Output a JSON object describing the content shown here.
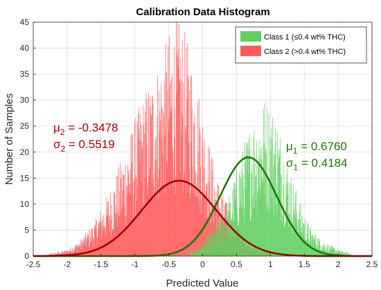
{
  "chart_data": {
    "type": "histogram",
    "title": "Calibration Data Histogram",
    "xlabel": "Predicted Value",
    "ylabel": "Number of Samples",
    "xlim": [
      -2.5,
      2.5
    ],
    "ylim": [
      0,
      45
    ],
    "xticks": [
      "-2.5",
      "-2",
      "-1.5",
      "-1",
      "-0.5",
      "0",
      "0.5",
      "1",
      "1.5",
      "2",
      "2.5"
    ],
    "yticks": [
      "0",
      "5",
      "10",
      "15",
      "20",
      "25",
      "30",
      "35",
      "40",
      "45"
    ],
    "grid": true,
    "legend_position": "top-right",
    "series": [
      {
        "name": "Class 1 (≤0.4 wt% THC)",
        "fill_color": "#5fcf5f",
        "curve_color": "#1a7a00",
        "mu": 0.676,
        "sigma": 0.4184,
        "peak_count": 19,
        "histogram_envelope": [
          [
            -0.2,
            0.5
          ],
          [
            0.0,
            2
          ],
          [
            0.2,
            5
          ],
          [
            0.4,
            9
          ],
          [
            0.5,
            13
          ],
          [
            0.6,
            16
          ],
          [
            0.7,
            19
          ],
          [
            0.8,
            21
          ],
          [
            0.9,
            23
          ],
          [
            1.0,
            22
          ],
          [
            1.1,
            20
          ],
          [
            1.2,
            16
          ],
          [
            1.3,
            12
          ],
          [
            1.4,
            9
          ],
          [
            1.5,
            6
          ],
          [
            1.6,
            4
          ],
          [
            1.8,
            2
          ],
          [
            2.0,
            1
          ],
          [
            2.2,
            0.3
          ]
        ]
      },
      {
        "name": "Class 2 (>0.4 wt% THC)",
        "fill_color": "#ff5a5a",
        "curve_color": "#a50000",
        "mu": -0.3478,
        "sigma": 0.5519,
        "peak_count": 14.5,
        "histogram_envelope": [
          [
            -2.3,
            0.2
          ],
          [
            -2.0,
            1
          ],
          [
            -1.8,
            2.5
          ],
          [
            -1.6,
            5
          ],
          [
            -1.4,
            9
          ],
          [
            -1.2,
            14
          ],
          [
            -1.0,
            20
          ],
          [
            -0.8,
            25
          ],
          [
            -0.6,
            29
          ],
          [
            -0.5,
            32
          ],
          [
            -0.4,
            34
          ],
          [
            -0.3,
            33
          ],
          [
            -0.2,
            30
          ],
          [
            -0.1,
            26
          ],
          [
            0.0,
            21
          ],
          [
            0.1,
            16
          ],
          [
            0.2,
            12
          ],
          [
            0.3,
            9
          ],
          [
            0.4,
            6
          ],
          [
            0.6,
            3
          ],
          [
            0.8,
            1.5
          ],
          [
            1.0,
            0.5
          ]
        ]
      }
    ],
    "annotations": {
      "class2_mu": {
        "prefix": "μ",
        "sub": "2",
        "value": " = -0.3478"
      },
      "class2_sigma": {
        "prefix": "σ",
        "sub": "2",
        "value": " =  0.5519"
      },
      "class1_mu": {
        "prefix": "μ",
        "sub": "1",
        "value": " = 0.6760"
      },
      "class1_sigma": {
        "prefix": "σ",
        "sub": "1",
        "value": " = 0.4184"
      }
    }
  }
}
